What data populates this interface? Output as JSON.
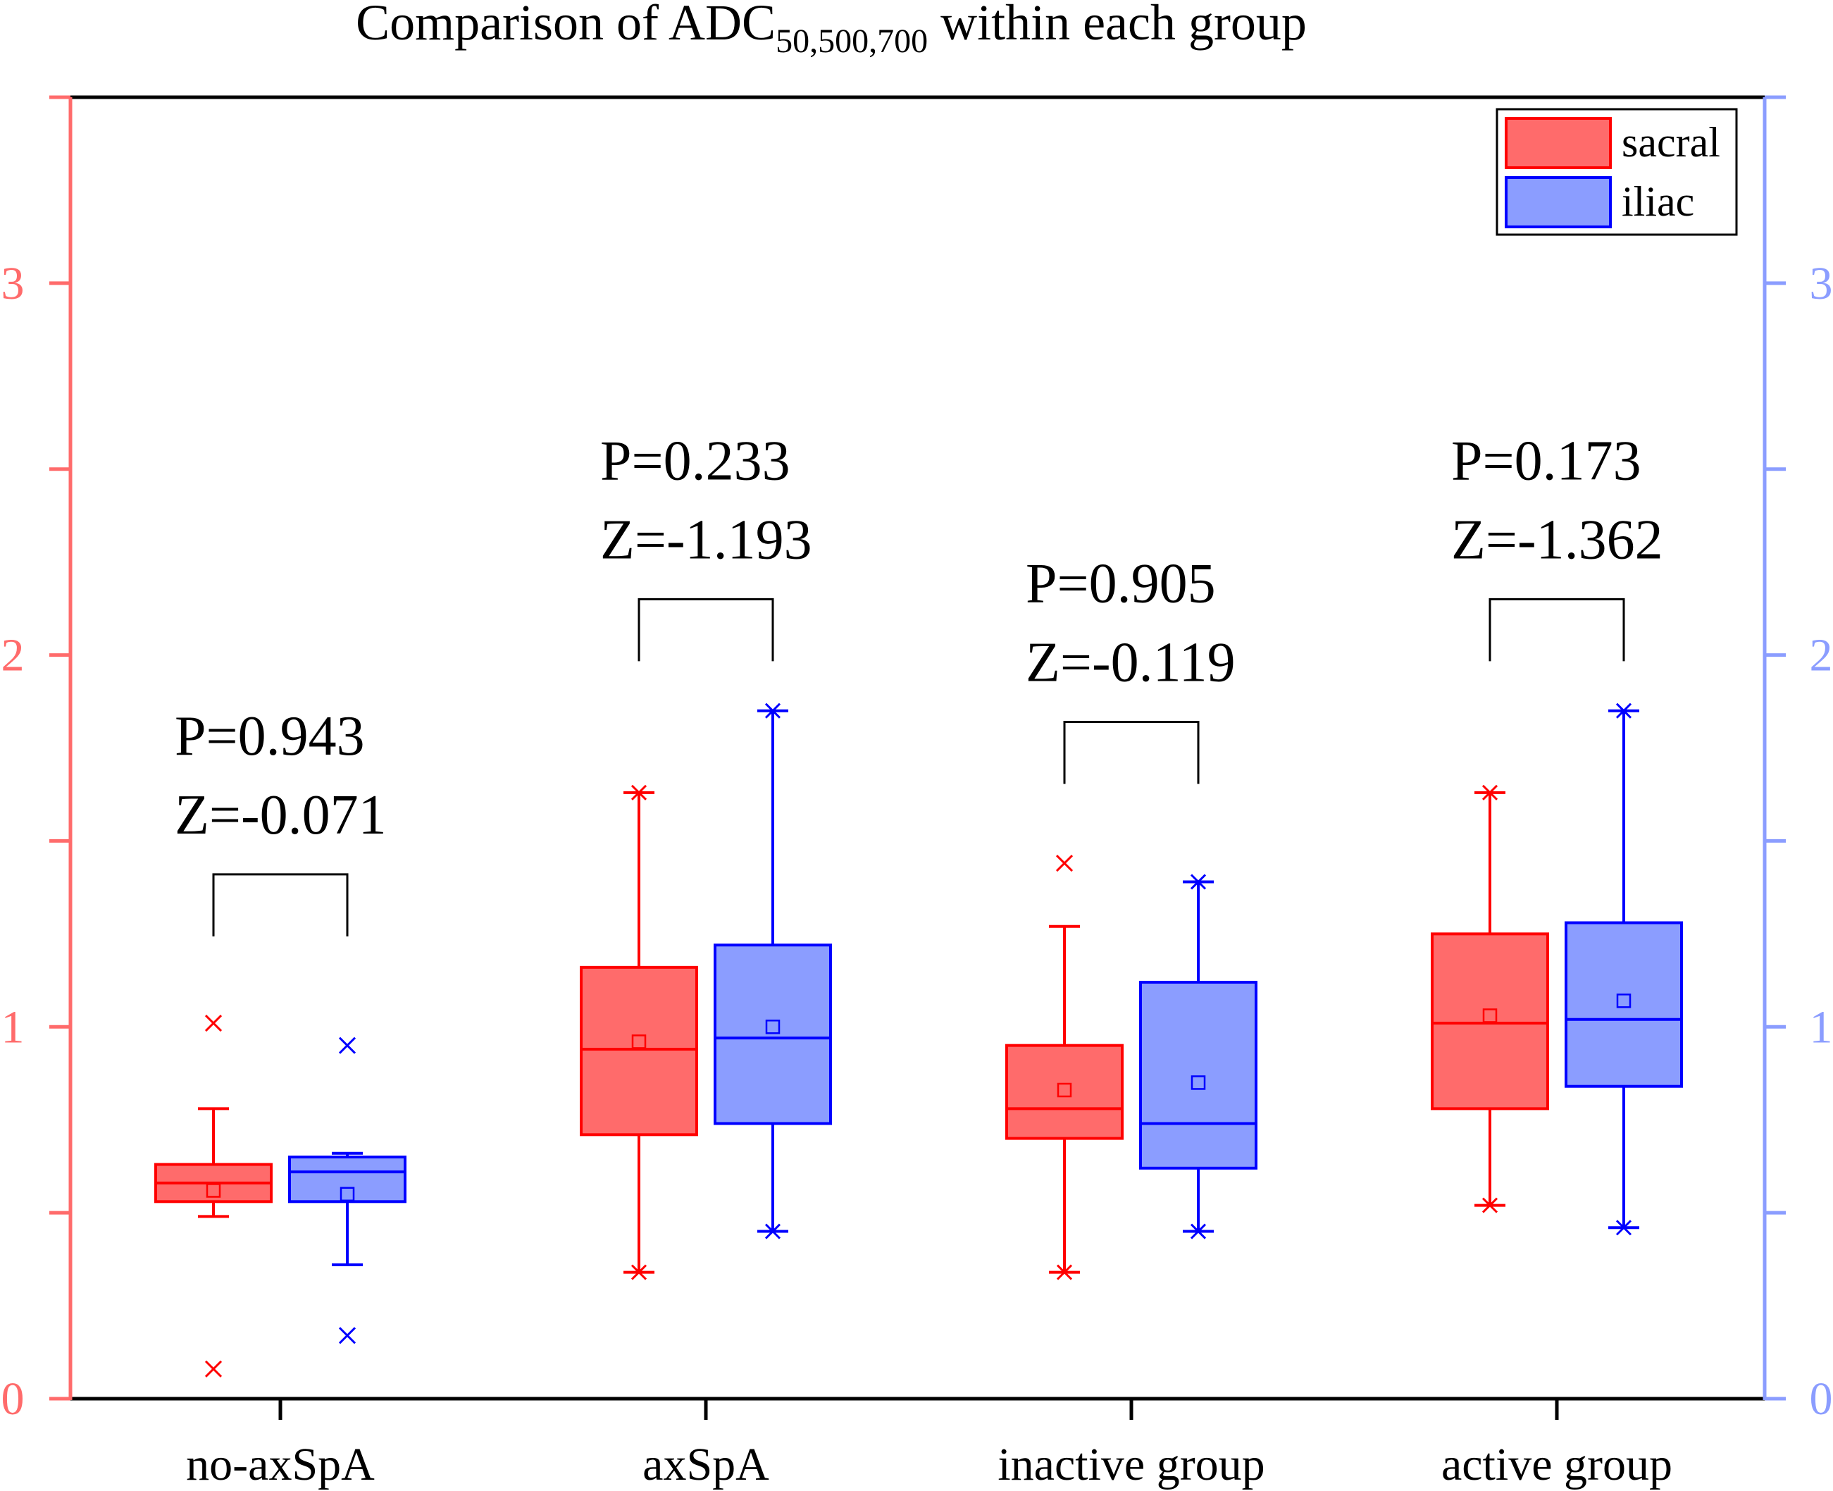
{
  "chart_data": {
    "type": "boxplot",
    "title": {
      "prefix": "Comparison of ADC",
      "subscript": "50,500,700",
      "suffix": " within each group"
    },
    "categories": [
      "no-axSpA",
      "axSpA",
      "inactive group",
      "active group"
    ],
    "y_left": {
      "lim": [
        0,
        3.5
      ],
      "ticks": [
        0,
        1,
        2,
        3
      ],
      "labels": [
        "0",
        "1",
        "2",
        "3"
      ],
      "color": "#ff6b6b"
    },
    "y_right": {
      "lim": [
        0,
        3.5
      ],
      "ticks": [
        0,
        1,
        2,
        3
      ],
      "labels": [
        "0",
        "1",
        "2",
        "3"
      ],
      "color": "#8b9dff"
    },
    "legend": {
      "position": "top-right",
      "entries": [
        {
          "label": "sacral",
          "fill": "#ff6b6b",
          "stroke": "#ff0000"
        },
        {
          "label": "iliac",
          "fill": "#8b9dff",
          "stroke": "#0000ff"
        }
      ]
    },
    "series": [
      {
        "name": "sacral",
        "fill": "#ff6b6b",
        "stroke": "#ff0000",
        "boxes": [
          {
            "whisker_low": 0.49,
            "q1": 0.53,
            "median": 0.58,
            "q3": 0.63,
            "whisker_high": 0.78,
            "mean": 0.56,
            "outliers": [
              1.01,
              0.08
            ],
            "whisker_caps": "bar"
          },
          {
            "whisker_low": 0.34,
            "q1": 0.71,
            "median": 0.94,
            "q3": 1.16,
            "whisker_high": 1.63,
            "mean": 0.96,
            "outliers": [],
            "whisker_caps": "x"
          },
          {
            "whisker_low": 0.34,
            "q1": 0.7,
            "median": 0.78,
            "q3": 0.95,
            "whisker_high": 1.27,
            "mean": 0.83,
            "outliers": [
              1.44
            ],
            "whisker_caps": "mixed"
          },
          {
            "whisker_low": 0.52,
            "q1": 0.78,
            "median": 1.01,
            "q3": 1.25,
            "whisker_high": 1.63,
            "mean": 1.03,
            "outliers": [],
            "whisker_caps": "x"
          }
        ]
      },
      {
        "name": "iliac",
        "fill": "#8b9dff",
        "stroke": "#0000ff",
        "boxes": [
          {
            "whisker_low": 0.36,
            "q1": 0.53,
            "median": 0.61,
            "q3": 0.65,
            "whisker_high": 0.66,
            "mean": 0.55,
            "outliers": [
              0.95,
              0.17
            ],
            "whisker_caps": "bar"
          },
          {
            "whisker_low": 0.45,
            "q1": 0.74,
            "median": 0.97,
            "q3": 1.22,
            "whisker_high": 1.85,
            "mean": 1.0,
            "outliers": [],
            "whisker_caps": "x"
          },
          {
            "whisker_low": 0.45,
            "q1": 0.62,
            "median": 0.74,
            "q3": 1.12,
            "whisker_high": 1.39,
            "mean": 0.85,
            "outliers": [],
            "whisker_caps": "x"
          },
          {
            "whisker_low": 0.46,
            "q1": 0.84,
            "median": 1.02,
            "q3": 1.28,
            "whisker_high": 1.85,
            "mean": 1.07,
            "outliers": [],
            "whisker_caps": "x"
          }
        ]
      }
    ],
    "comparisons": [
      {
        "category": "no-axSpA",
        "p": "P=0.943",
        "z": "Z=-0.071",
        "bracket_y": 1.41
      },
      {
        "category": "axSpA",
        "p": "P=0.233",
        "z": "Z=-1.193",
        "bracket_y": 2.15
      },
      {
        "category": "inactive group",
        "p": "P=0.905",
        "z": "Z=-0.119",
        "bracket_y": 1.82
      },
      {
        "category": "active group",
        "p": "P=0.173",
        "z": "Z=-1.362",
        "bracket_y": 2.15
      }
    ]
  }
}
